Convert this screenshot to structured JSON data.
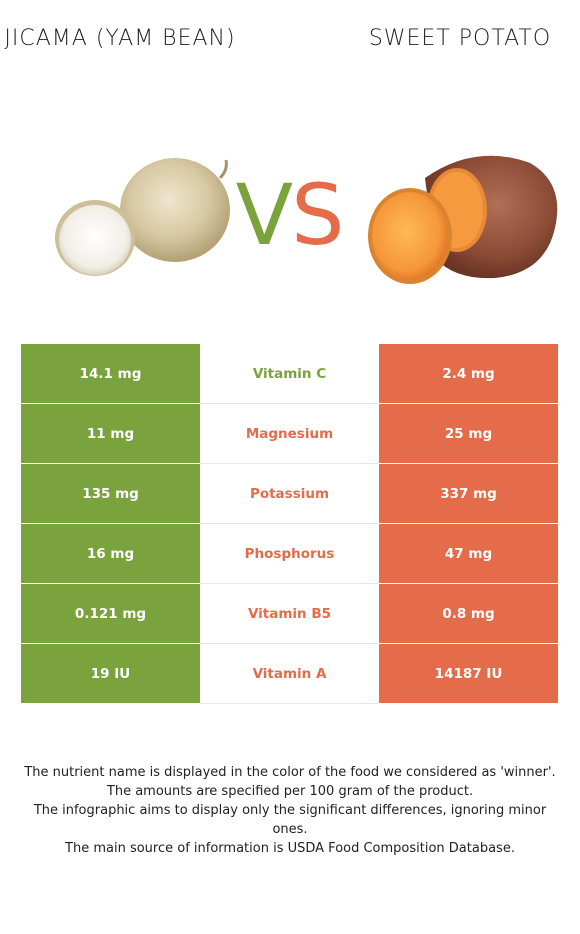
{
  "header": {
    "left_title": "JICAMA (YAM BEAN)",
    "right_title": "SWEET POTATO",
    "vs_left": "V",
    "vs_right": "S"
  },
  "colors": {
    "left_food": "#7aa23d",
    "right_food": "#e46c4a"
  },
  "comparison": {
    "rows": [
      {
        "left": "14.1 mg",
        "nutrient": "Vitamin C",
        "right": "2.4 mg",
        "winner": "left"
      },
      {
        "left": "11 mg",
        "nutrient": "Magnesium",
        "right": "25 mg",
        "winner": "right"
      },
      {
        "left": "135 mg",
        "nutrient": "Potassium",
        "right": "337 mg",
        "winner": "right"
      },
      {
        "left": "16 mg",
        "nutrient": "Phosphorus",
        "right": "47 mg",
        "winner": "right"
      },
      {
        "left": "0.121 mg",
        "nutrient": "Vitamin B5",
        "right": "0.8 mg",
        "winner": "right"
      },
      {
        "left": "19 IU",
        "nutrient": "Vitamin A",
        "right": "14187 IU",
        "winner": "right"
      }
    ]
  },
  "footnote": {
    "line1": "The nutrient name is displayed in the color of the food we considered as 'winner'.",
    "line2": "The amounts are specified per 100 gram of the product.",
    "line3": "The infographic aims to display only the significant differences, ignoring minor ones.",
    "line4": "The main source of information is USDA Food Composition Database."
  }
}
